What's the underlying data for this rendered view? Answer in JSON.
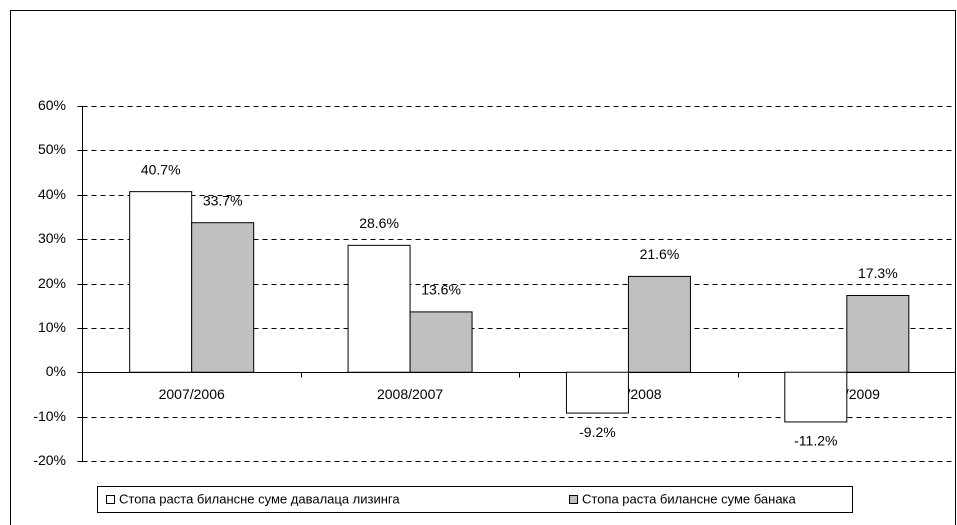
{
  "chart_data": {
    "type": "bar",
    "categories": [
      "2007/2006",
      "2008/2007",
      "2009/2008",
      "2010/2009"
    ],
    "series": [
      {
        "name": "Стопа раста билансне суме давалаца лизинга",
        "color": "#ffffff",
        "values": [
          40.7,
          28.6,
          -9.2,
          -11.2
        ],
        "value_labels": [
          "40.7%",
          "28.6%",
          "-9.2%",
          "-11.2%"
        ]
      },
      {
        "name": "Стопа раста билансне суме банака",
        "color": "#c0c0c0",
        "values": [
          33.7,
          13.6,
          21.6,
          17.3
        ],
        "value_labels": [
          "33.7%",
          "13.6%",
          "21.6%",
          "17.3%"
        ]
      }
    ],
    "ylim": [
      -20,
      60
    ],
    "yticks": [
      {
        "value": -20,
        "label": "-20%"
      },
      {
        "value": -10,
        "label": "-10%"
      },
      {
        "value": 0,
        "label": "0%"
      },
      {
        "value": 10,
        "label": "10%"
      },
      {
        "value": 20,
        "label": "20%"
      },
      {
        "value": 30,
        "label": "30%"
      },
      {
        "value": 40,
        "label": "40%"
      },
      {
        "value": 50,
        "label": "50%"
      },
      {
        "value": 60,
        "label": "60%"
      }
    ],
    "grid": true,
    "legend": "bottom"
  }
}
